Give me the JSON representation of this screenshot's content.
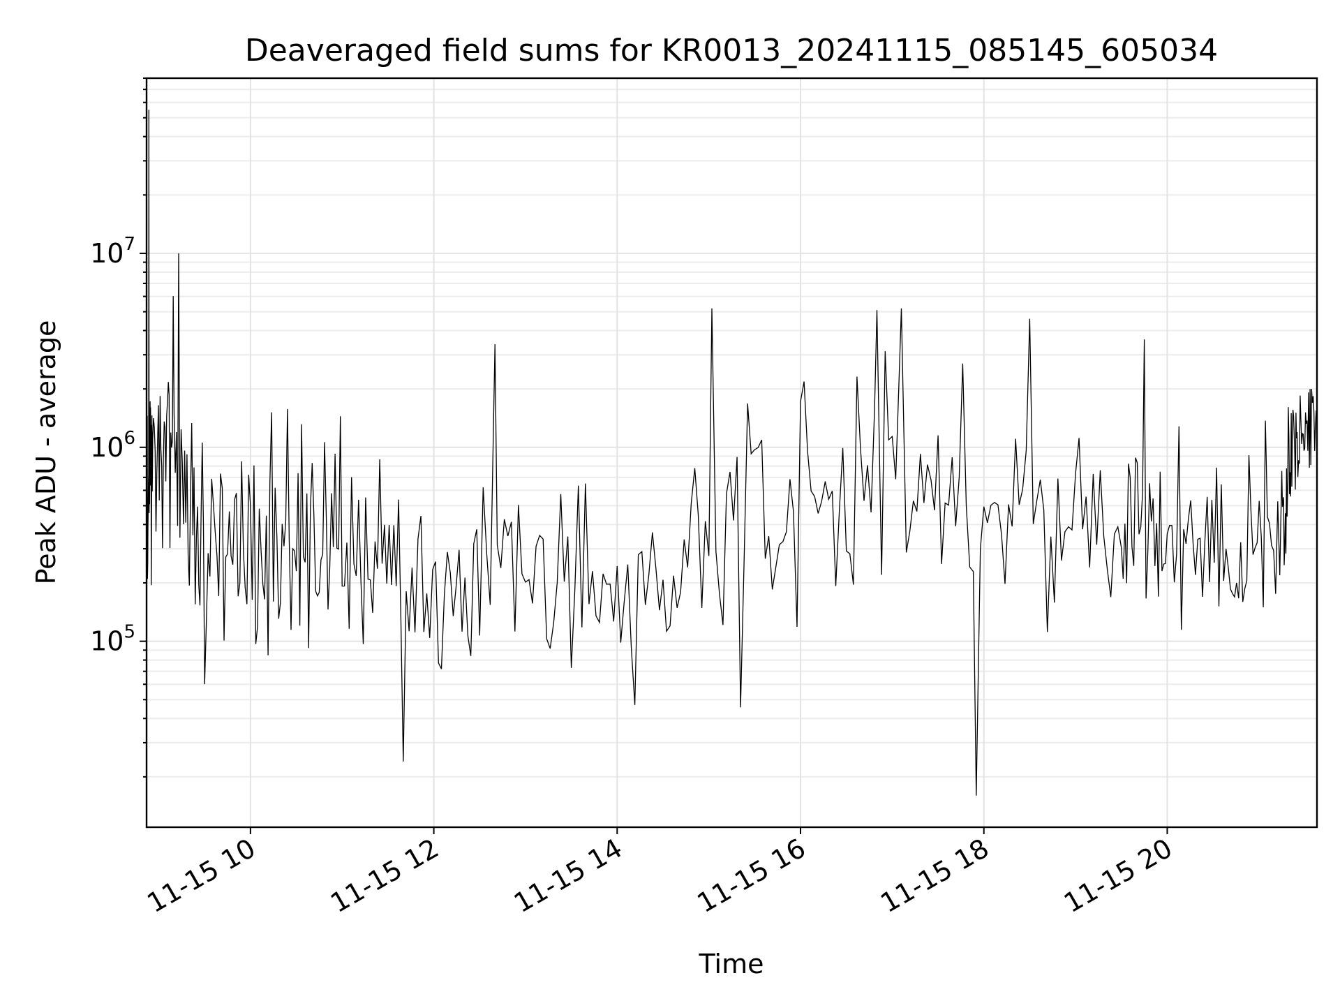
{
  "chart_data": {
    "type": "line",
    "title": "Deaveraged field sums for KR0013_20241115_085145_605034",
    "xlabel": "Time",
    "ylabel": "Peak ADU - average",
    "x_type": "datetime",
    "x_start": "2024-11-15T08:52:00",
    "x_end": "2024-11-15T21:38:00",
    "xlim": [
      "2024-11-15T08:52:00",
      "2024-11-15T21:38:00"
    ],
    "x_ticks": [
      {
        "time": "2024-11-15T10:00:00",
        "label": "11-15 10"
      },
      {
        "time": "2024-11-15T12:00:00",
        "label": "11-15 12"
      },
      {
        "time": "2024-11-15T14:00:00",
        "label": "11-15 14"
      },
      {
        "time": "2024-11-15T16:00:00",
        "label": "11-15 16"
      },
      {
        "time": "2024-11-15T18:00:00",
        "label": "11-15 18"
      },
      {
        "time": "2024-11-15T20:00:00",
        "label": "11-15 20"
      }
    ],
    "y_scale": "log",
    "ylim": [
      11000,
      80000000
    ],
    "y_ticks": [
      {
        "value": 100000,
        "base": "10",
        "exp": "5"
      },
      {
        "value": 1000000,
        "base": "10",
        "exp": "6"
      },
      {
        "value": 10000000,
        "base": "10",
        "exp": "7"
      }
    ],
    "grid": true,
    "color": "#000000",
    "points_per_segment": 26,
    "envelope": [
      {
        "time": "2024-11-15T08:52:00",
        "median": 450000,
        "spread": 0.7
      },
      {
        "time": "2024-11-15T08:56:00",
        "median": 1100000,
        "spread": 0.45
      },
      {
        "time": "2024-11-15T09:10:00",
        "median": 1000000,
        "spread": 0.45
      },
      {
        "time": "2024-11-15T09:30:00",
        "median": 350000,
        "spread": 0.5
      },
      {
        "time": "2024-11-15T10:00:00",
        "median": 350000,
        "spread": 0.6
      },
      {
        "time": "2024-11-15T10:30:00",
        "median": 450000,
        "spread": 0.6
      },
      {
        "time": "2024-11-15T11:00:00",
        "median": 350000,
        "spread": 0.55
      },
      {
        "time": "2024-11-15T11:40:00",
        "median": 170000,
        "spread": 0.5
      },
      {
        "time": "2024-11-15T12:30:00",
        "median": 220000,
        "spread": 0.5
      },
      {
        "time": "2024-11-15T13:30:00",
        "median": 150000,
        "spread": 0.45
      },
      {
        "time": "2024-11-15T14:30:00",
        "median": 200000,
        "spread": 0.5
      },
      {
        "time": "2024-11-15T15:30:00",
        "median": 450000,
        "spread": 0.6
      },
      {
        "time": "2024-11-15T16:30:00",
        "median": 550000,
        "spread": 0.6
      },
      {
        "time": "2024-11-15T17:30:00",
        "median": 500000,
        "spread": 0.55
      },
      {
        "time": "2024-11-15T18:30:00",
        "median": 450000,
        "spread": 0.55
      },
      {
        "time": "2024-11-15T19:30:00",
        "median": 400000,
        "spread": 0.55
      },
      {
        "time": "2024-11-15T20:00:00",
        "median": 350000,
        "spread": 0.45
      },
      {
        "time": "2024-11-15T20:40:00",
        "median": 280000,
        "spread": 0.45
      },
      {
        "time": "2024-11-15T21:15:00",
        "median": 400000,
        "spread": 0.45
      },
      {
        "time": "2024-11-15T21:25:00",
        "median": 1300000,
        "spread": 0.3
      },
      {
        "time": "2024-11-15T21:38:00",
        "median": 1400000,
        "spread": 0.25
      }
    ],
    "spikes": [
      {
        "time": "2024-11-15T08:53:30",
        "value": 55000000
      },
      {
        "time": "2024-11-15T09:13:00",
        "value": 10000000
      },
      {
        "time": "2024-11-15T11:40:00",
        "value": 24000
      },
      {
        "time": "2024-11-15T12:40:00",
        "value": 3400000
      },
      {
        "time": "2024-11-15T15:02:00",
        "value": 5200000
      },
      {
        "time": "2024-11-15T16:50:00",
        "value": 5100000
      },
      {
        "time": "2024-11-15T17:06:00",
        "value": 5200000
      },
      {
        "time": "2024-11-15T17:55:00",
        "value": 16000
      },
      {
        "time": "2024-11-15T18:30:00",
        "value": 4600000
      },
      {
        "time": "2024-11-15T19:45:00",
        "value": 3600000
      }
    ]
  }
}
